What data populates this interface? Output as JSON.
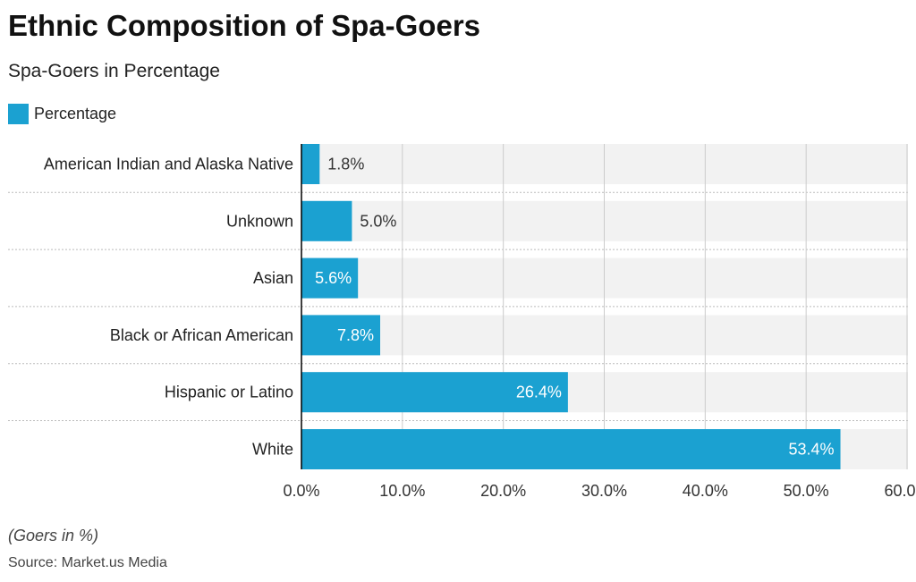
{
  "title": "Ethnic Composition of Spa-Goers",
  "subtitle": "Spa-Goers in Percentage",
  "footnote": "(Goers in %)",
  "source": "Source: Market.us Media",
  "colors": {
    "bar": "#1ba1d1",
    "band": "#f2f2f2",
    "grid": "#cccccc"
  },
  "chart_data": {
    "type": "bar",
    "orientation": "horizontal",
    "categories": [
      "American Indian and Alaska Native",
      "Unknown",
      "Asian",
      "Black or African American",
      "Hispanic or Latino",
      "White"
    ],
    "series": [
      {
        "name": "Percentage",
        "values": [
          1.8,
          5.0,
          5.6,
          7.8,
          26.4,
          53.4
        ]
      }
    ],
    "data_labels": [
      "1.8%",
      "5.0%",
      "5.6%",
      "7.8%",
      "26.4%",
      "53.4%"
    ],
    "xlim": [
      0,
      60
    ],
    "xticks": [
      0,
      10,
      20,
      30,
      40,
      50,
      60
    ],
    "xtick_labels": [
      "0.0%",
      "10.0%",
      "20.0%",
      "30.0%",
      "40.0%",
      "50.0%",
      "60.0%"
    ],
    "legend": "top-left",
    "grid": true
  }
}
